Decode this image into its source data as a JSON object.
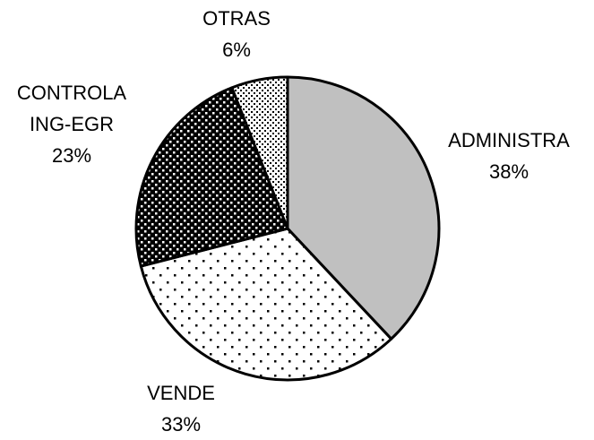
{
  "chart_data": {
    "type": "pie",
    "categories": [
      "ADMINISTRA",
      "VENDE",
      "CONTROLA ING-EGR",
      "OTRAS"
    ],
    "values": [
      38,
      33,
      23,
      6
    ],
    "value_labels": [
      "38%",
      "33%",
      "23%",
      "6%"
    ]
  }
}
